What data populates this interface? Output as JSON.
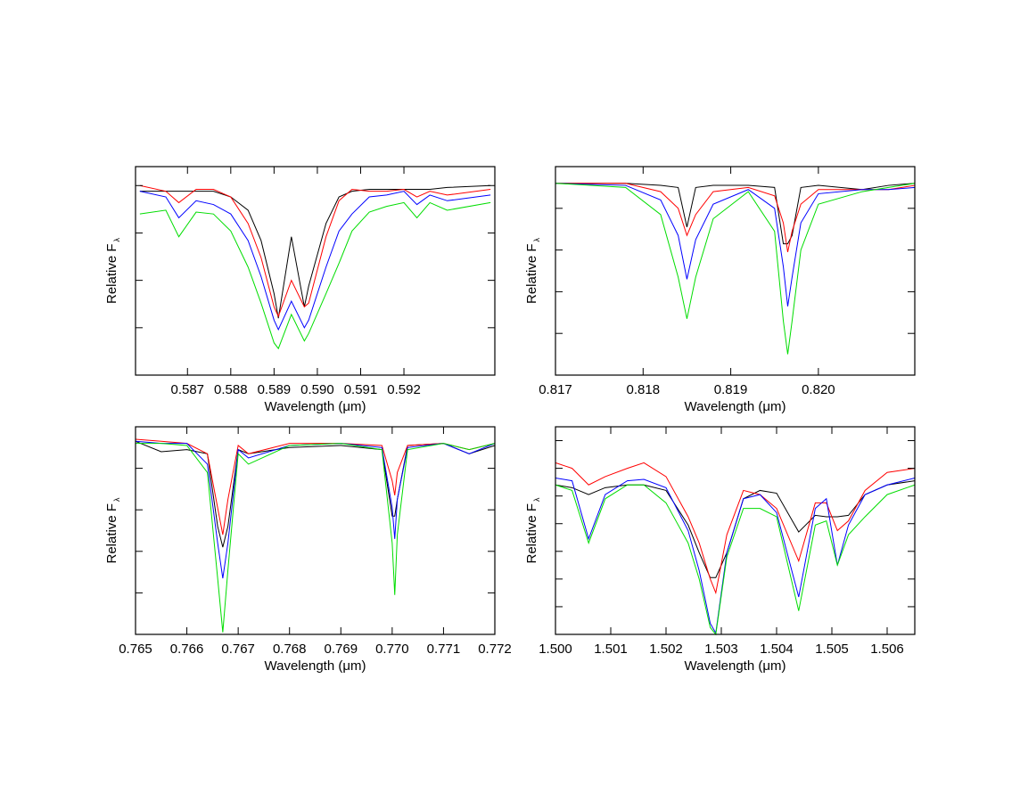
{
  "chart_data": [
    {
      "type": "line",
      "xlabel": "Wavelength (μm)",
      "ylabel": "Relative F",
      "ylabel_sub": "λ",
      "xlim": [
        0.5858,
        0.5941
      ],
      "ylim": [
        0,
        1.1
      ],
      "xticks": [
        0.587,
        0.588,
        0.589,
        {
          "value": 0.59,
          "label": "0.590"
        },
        0.591,
        0.592
      ],
      "yticks": [
        0.25,
        0.5,
        0.75,
        1.0
      ],
      "x": [
        0.5859,
        0.5865,
        0.5868,
        0.5872,
        0.5876,
        0.588,
        0.5884,
        0.5887,
        0.589,
        0.5891,
        0.5894,
        0.5897,
        0.5898,
        0.5902,
        0.5905,
        0.5908,
        0.5912,
        0.5916,
        0.592,
        0.5923,
        0.5926,
        0.593,
        0.594
      ],
      "series": [
        {
          "color": "#000000",
          "values": [
            0.97,
            0.97,
            0.97,
            0.97,
            0.97,
            0.94,
            0.87,
            0.71,
            0.43,
            0.3,
            0.73,
            0.36,
            0.47,
            0.8,
            0.94,
            0.97,
            0.98,
            0.98,
            0.98,
            0.98,
            0.98,
            0.99,
            1.0
          ]
        },
        {
          "color": "#ff0000",
          "values": [
            1.0,
            0.97,
            0.91,
            0.98,
            0.98,
            0.94,
            0.8,
            0.62,
            0.36,
            0.31,
            0.5,
            0.36,
            0.38,
            0.73,
            0.92,
            0.98,
            0.97,
            0.97,
            0.98,
            0.94,
            0.97,
            0.95,
            0.98
          ]
        },
        {
          "color": "#0000ff",
          "values": [
            0.97,
            0.94,
            0.83,
            0.92,
            0.9,
            0.85,
            0.71,
            0.52,
            0.29,
            0.24,
            0.39,
            0.25,
            0.29,
            0.57,
            0.76,
            0.85,
            0.94,
            0.95,
            0.97,
            0.9,
            0.95,
            0.92,
            0.95
          ]
        },
        {
          "color": "#00dd00",
          "values": [
            0.85,
            0.87,
            0.73,
            0.86,
            0.85,
            0.76,
            0.57,
            0.38,
            0.17,
            0.14,
            0.32,
            0.18,
            0.22,
            0.43,
            0.59,
            0.76,
            0.86,
            0.89,
            0.91,
            0.83,
            0.91,
            0.87,
            0.91
          ]
        }
      ]
    },
    {
      "type": "line",
      "xlabel": "Wavelength (μm)",
      "ylabel": "Relative F",
      "ylabel_sub": "λ",
      "xlim": [
        0.817,
        0.8211
      ],
      "ylim": [
        0,
        1
      ],
      "xticks": [
        0.817,
        0.818,
        0.819,
        {
          "value": 0.82,
          "label": "0.820"
        }
      ],
      "yticks": [
        0.2,
        0.4,
        0.6,
        0.8
      ],
      "x": [
        0.817,
        0.8178,
        0.8182,
        0.8184,
        0.8185,
        0.8186,
        0.8188,
        0.8192,
        0.8195,
        0.8196,
        0.81965,
        0.8197,
        0.8198,
        0.82,
        0.8205,
        0.8208,
        0.8211
      ],
      "series": [
        {
          "color": "#000000",
          "values": [
            0.92,
            0.92,
            0.91,
            0.9,
            0.71,
            0.9,
            0.91,
            0.91,
            0.9,
            0.63,
            0.63,
            0.67,
            0.9,
            0.91,
            0.89,
            0.91,
            0.92
          ]
        },
        {
          "color": "#ff0000",
          "values": [
            0.92,
            0.92,
            0.88,
            0.8,
            0.67,
            0.77,
            0.88,
            0.9,
            0.86,
            0.73,
            0.59,
            0.69,
            0.82,
            0.89,
            0.89,
            0.89,
            0.91
          ]
        },
        {
          "color": "#0000ff",
          "values": [
            0.92,
            0.91,
            0.84,
            0.67,
            0.46,
            0.65,
            0.82,
            0.89,
            0.8,
            0.52,
            0.33,
            0.47,
            0.73,
            0.87,
            0.89,
            0.89,
            0.9
          ]
        },
        {
          "color": "#00dd00",
          "values": [
            0.92,
            0.9,
            0.77,
            0.47,
            0.27,
            0.47,
            0.75,
            0.88,
            0.69,
            0.26,
            0.1,
            0.26,
            0.6,
            0.82,
            0.88,
            0.9,
            0.92
          ]
        }
      ]
    },
    {
      "type": "line",
      "xlabel": "Wavelength (μm)",
      "ylabel": "Relative F",
      "ylabel_sub": "λ",
      "xlim": [
        0.765,
        0.772
      ],
      "ylim": [
        0,
        1
      ],
      "xticks": [
        0.765,
        0.766,
        0.767,
        0.768,
        0.769,
        {
          "value": 0.77,
          "label": "0.770"
        },
        0.771,
        0.772
      ],
      "yticks": [
        0.2,
        0.4,
        0.6,
        0.8
      ],
      "x": [
        0.765,
        0.7655,
        0.766,
        0.7664,
        0.7666,
        0.7667,
        0.7668,
        0.767,
        0.7672,
        0.768,
        0.769,
        0.7698,
        0.77,
        0.77005,
        0.7701,
        0.7703,
        0.771,
        0.7715,
        0.772
      ],
      "series": [
        {
          "color": "#000000",
          "values": [
            0.93,
            0.88,
            0.89,
            0.87,
            0.52,
            0.42,
            0.52,
            0.89,
            0.87,
            0.9,
            0.91,
            0.89,
            0.57,
            0.57,
            0.65,
            0.91,
            0.92,
            0.87,
            0.91
          ]
        },
        {
          "color": "#ff0000",
          "values": [
            0.94,
            0.93,
            0.92,
            0.87,
            0.61,
            0.48,
            0.65,
            0.91,
            0.87,
            0.92,
            0.92,
            0.91,
            0.74,
            0.67,
            0.78,
            0.91,
            0.92,
            0.89,
            0.92
          ]
        },
        {
          "color": "#0000ff",
          "values": [
            0.93,
            0.92,
            0.92,
            0.82,
            0.44,
            0.27,
            0.44,
            0.89,
            0.85,
            0.91,
            0.92,
            0.9,
            0.61,
            0.46,
            0.65,
            0.9,
            0.92,
            0.87,
            0.92
          ]
        },
        {
          "color": "#00dd00",
          "values": [
            0.92,
            0.92,
            0.91,
            0.78,
            0.27,
            0.01,
            0.31,
            0.87,
            0.82,
            0.91,
            0.92,
            0.89,
            0.44,
            0.19,
            0.48,
            0.89,
            0.92,
            0.89,
            0.92
          ]
        }
      ]
    },
    {
      "type": "line",
      "xlabel": "Wavelength (μm)",
      "ylabel": "Relative F",
      "ylabel_sub": "λ",
      "xlim": [
        1.5,
        1.5065
      ],
      "ylim": [
        0,
        1.5
      ],
      "xticks": [
        {
          "value": 1.5,
          "label": "1.500"
        },
        1.501,
        1.502,
        1.503,
        1.504,
        1.505,
        1.506
      ],
      "yticks": [
        0.2,
        0.4,
        0.6,
        0.8,
        1.0,
        1.2,
        1.4
      ],
      "x": [
        1.5,
        1.5003,
        1.5006,
        1.5009,
        1.5013,
        1.5016,
        1.502,
        1.5024,
        1.5026,
        1.5028,
        1.5029,
        1.5031,
        1.5034,
        1.5037,
        1.504,
        1.5044,
        1.5047,
        1.5049,
        1.5051,
        1.5053,
        1.5056,
        1.506,
        1.5065
      ],
      "series": [
        {
          "color": "#000000",
          "values": [
            1.08,
            1.06,
            1.01,
            1.06,
            1.08,
            1.08,
            1.04,
            0.79,
            0.59,
            0.41,
            0.41,
            0.59,
            0.98,
            1.04,
            1.02,
            0.74,
            0.86,
            0.85,
            0.85,
            0.86,
            1.01,
            1.08,
            1.11
          ]
        },
        {
          "color": "#ff0000",
          "values": [
            1.24,
            1.2,
            1.08,
            1.14,
            1.2,
            1.24,
            1.14,
            0.85,
            0.66,
            0.4,
            0.3,
            0.72,
            1.04,
            1.01,
            0.91,
            0.53,
            0.95,
            0.95,
            0.75,
            0.82,
            1.04,
            1.17,
            1.2
          ]
        },
        {
          "color": "#0000ff",
          "values": [
            1.13,
            1.11,
            0.69,
            1.01,
            1.11,
            1.12,
            1.06,
            0.75,
            0.46,
            0.08,
            0.01,
            0.59,
            0.98,
            1.01,
            0.88,
            0.27,
            0.91,
            0.98,
            0.5,
            0.79,
            1.01,
            1.08,
            1.13
          ]
        },
        {
          "color": "#00dd00",
          "values": [
            1.08,
            1.04,
            0.66,
            0.98,
            1.08,
            1.08,
            0.95,
            0.66,
            0.4,
            0.05,
            0.0,
            0.56,
            0.91,
            0.91,
            0.85,
            0.17,
            0.79,
            0.82,
            0.5,
            0.72,
            0.85,
            1.01,
            1.08
          ]
        }
      ]
    }
  ]
}
